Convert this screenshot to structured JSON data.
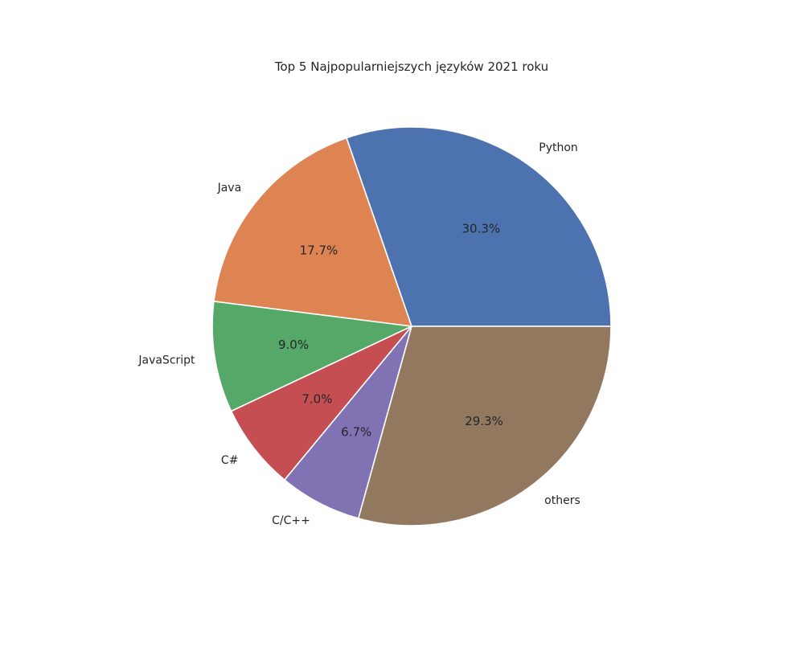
{
  "chart_data": {
    "type": "pie",
    "title": "Top 5 Najpopularniejszych języków 2021 roku",
    "categories": [
      "Python",
      "Java",
      "JavaScript",
      "C#",
      "C/C++",
      "others"
    ],
    "values": [
      30.3,
      17.7,
      9.0,
      7.0,
      6.7,
      29.3
    ],
    "pct_labels": [
      "30.3%",
      "17.7%",
      "9.0%",
      "7.0%",
      "6.7%",
      "29.3%"
    ],
    "colors": [
      "#4c72b0",
      "#dd8452",
      "#55a868",
      "#c44e52",
      "#8172b3",
      "#937860"
    ],
    "start_angle_deg": 0,
    "direction": "counterclockwise"
  }
}
